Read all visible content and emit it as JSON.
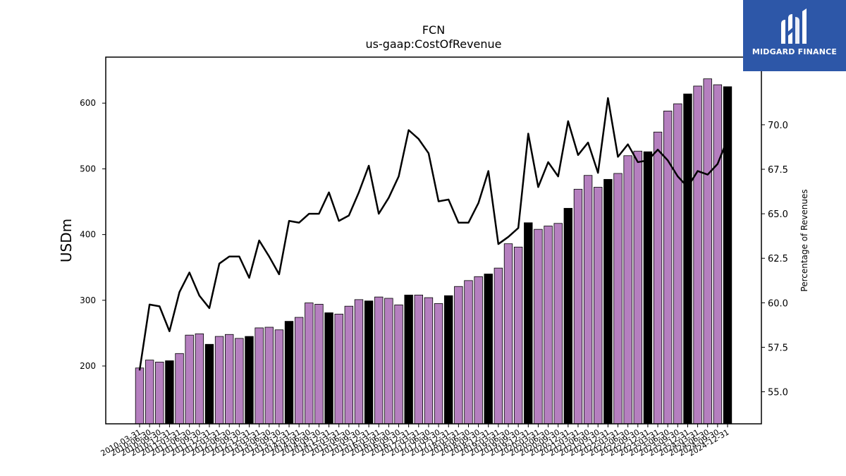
{
  "chart_data": {
    "type": "bar",
    "title": "FCN",
    "subtitle": "us-gaap:CostOfRevenue",
    "ylabel": "USDm",
    "y2label": "Percentage of Revenues",
    "ylim": [
      112,
      670
    ],
    "y2lim": [
      53.2,
      73.8
    ],
    "yticks": [
      200,
      300,
      400,
      500,
      600
    ],
    "y2ticks": [
      55.0,
      57.5,
      60.0,
      62.5,
      65.0,
      67.5,
      70.0
    ],
    "y2tick_labels": [
      "55.0",
      "57.5",
      "60.0",
      "62.5",
      "65.0",
      "67.5",
      "70.0"
    ],
    "bar_colors": {
      "quarter": "#b57fbf",
      "fiscal_year_end": "#000000"
    },
    "line_color": "#000000",
    "categories": [
      "2010-03-31",
      "2010-06-30",
      "2010-09-30",
      "2010-12-31",
      "2011-03-31",
      "2011-06-30",
      "2011-09-30",
      "2011-12-31",
      "2012-03-31",
      "2012-06-30",
      "2012-09-30",
      "2012-12-31",
      "2013-03-31",
      "2013-06-30",
      "2013-09-30",
      "2013-12-31",
      "2014-03-31",
      "2014-06-30",
      "2014-09-30",
      "2014-12-31",
      "2015-03-31",
      "2015-06-30",
      "2015-09-30",
      "2015-12-31",
      "2016-03-31",
      "2016-06-30",
      "2016-09-30",
      "2016-12-31",
      "2017-03-31",
      "2017-06-30",
      "2017-09-30",
      "2017-12-31",
      "2018-03-31",
      "2018-06-30",
      "2018-09-30",
      "2018-12-31",
      "2019-03-31",
      "2019-06-30",
      "2019-09-30",
      "2019-12-31",
      "2020-03-31",
      "2020-06-30",
      "2020-09-30",
      "2020-12-31",
      "2021-03-31",
      "2021-06-30",
      "2021-09-30",
      "2021-12-31",
      "2022-03-31",
      "2022-06-30",
      "2022-09-30",
      "2022-12-31",
      "2023-03-31",
      "2023-06-30",
      "2023-09-30",
      "2023-12-31",
      "2024-03-31",
      "2024-06-30",
      "2024-09-30",
      "2024-12-31"
    ],
    "series": [
      {
        "values": [
          197,
          209,
          206,
          208,
          219,
          247,
          249,
          233,
          245,
          248,
          242,
          245,
          258,
          259,
          255,
          268,
          274,
          296,
          294,
          281,
          279,
          291,
          301,
          299,
          305,
          303,
          293,
          308,
          308,
          304,
          295,
          307,
          321,
          330,
          336,
          340,
          349,
          386,
          381,
          418,
          408,
          413,
          417,
          440,
          469,
          490,
          472,
          484,
          493,
          520,
          527,
          526,
          556,
          588,
          599,
          614,
          626,
          637,
          628,
          625
        ],
        "fiscal_year_end": [
          false,
          false,
          false,
          true,
          false,
          false,
          false,
          true,
          false,
          false,
          false,
          true,
          false,
          false,
          false,
          true,
          false,
          false,
          false,
          true,
          false,
          false,
          false,
          true,
          false,
          false,
          false,
          true,
          false,
          false,
          false,
          true,
          false,
          false,
          false,
          true,
          false,
          false,
          false,
          true,
          false,
          false,
          false,
          true,
          false,
          false,
          false,
          true,
          false,
          false,
          false,
          true,
          false,
          false,
          false,
          true,
          false,
          false,
          false,
          true
        ]
      },
      {
        "axis": "right",
        "values": [
          56.2,
          59.9,
          59.8,
          58.4,
          60.6,
          61.7,
          60.4,
          59.7,
          62.2,
          62.6,
          62.6,
          61.4,
          63.5,
          62.6,
          61.6,
          64.6,
          64.5,
          65.0,
          65.0,
          66.2,
          64.6,
          64.9,
          66.2,
          67.7,
          65.0,
          65.9,
          67.1,
          69.7,
          69.2,
          68.4,
          65.7,
          65.8,
          64.5,
          64.5,
          65.6,
          67.4,
          63.3,
          63.7,
          64.2,
          69.5,
          66.5,
          67.9,
          67.1,
          70.2,
          68.3,
          69.0,
          67.3,
          71.5,
          68.2,
          68.9,
          67.9,
          68.0,
          68.6,
          68.0,
          67.1,
          66.5,
          67.4,
          67.2,
          67.8,
          69.2
        ]
      }
    ]
  },
  "branding": {
    "name": "MIDGARD FINANCE",
    "background": "#2d57a8"
  }
}
